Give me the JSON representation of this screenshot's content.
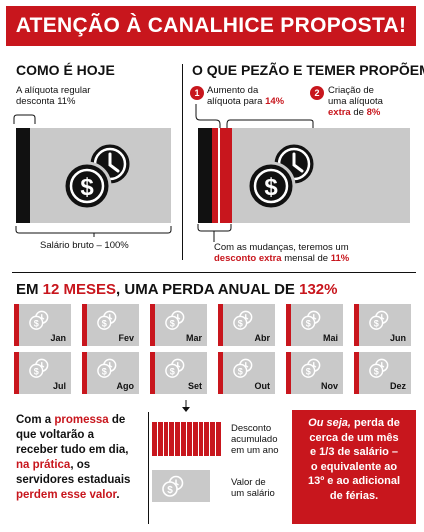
{
  "banner": {
    "title": "ATENÇÃO À CANALHICE PROPOSTA!"
  },
  "left": {
    "heading": "COMO É HOJE",
    "desc_line1": "A alíquota regular",
    "desc_line2": "desconta 11%",
    "caption": "Salário bruto – 100%"
  },
  "right": {
    "heading": "O QUE PEZÃO E TEMER PROPÕEM",
    "item1_num": "1",
    "item1_line1": "Aumento da",
    "item1_line2a": "alíquota para ",
    "item1_line2b": "14%",
    "item2_num": "2",
    "item2_line1": "Criação de",
    "item2_line2": "uma alíquota",
    "item2_line3a": "extra",
    "item2_line3b": " de ",
    "item2_line3c": "8%",
    "caption_line1": "Com as mudanças, teremos um",
    "caption_line2a": "desconto extra",
    "caption_line2b": " mensal de ",
    "caption_line2c": "11%"
  },
  "year": {
    "heading_a": "EM ",
    "heading_b": "12 MESES",
    "heading_c": ", UMA PERDA ANUAL DE ",
    "heading_d": "132%",
    "months": [
      "Jan",
      "Fev",
      "Mar",
      "Abr",
      "Mai",
      "Jun",
      "Jul",
      "Ago",
      "Set",
      "Out",
      "Nov",
      "Dez"
    ]
  },
  "bottom": {
    "text_l1a": "Com a ",
    "text_l1b": "promessa",
    "text_l1c": " de",
    "text_l2": "que voltarão a",
    "text_l3": "receber tudo em dia,",
    "text_l4a": "na prática",
    "text_l4b": ", os",
    "text_l5": "servidores estaduais",
    "text_l6a": "perdem esse valor",
    "text_l6b": ".",
    "legend1_line1": "Desconto",
    "legend1_line2": "acumulado",
    "legend1_line3": "em um ano",
    "legend2_line1": "Valor de",
    "legend2_line2": "um salário",
    "redbox_l1": "Ou seja,",
    "redbox_l1b": " perda de",
    "redbox_l2": "cerca de um mês",
    "redbox_l3": "e 1/3 de salário –",
    "redbox_l4": "o equivalente ao",
    "redbox_l5": "13º e ao adicional",
    "redbox_l6": "de férias."
  },
  "colors": {
    "accent": "#c8161d",
    "panel": "#c9c9c9",
    "ink": "#111111"
  },
  "icons": [
    "dollar-clock-icon"
  ]
}
